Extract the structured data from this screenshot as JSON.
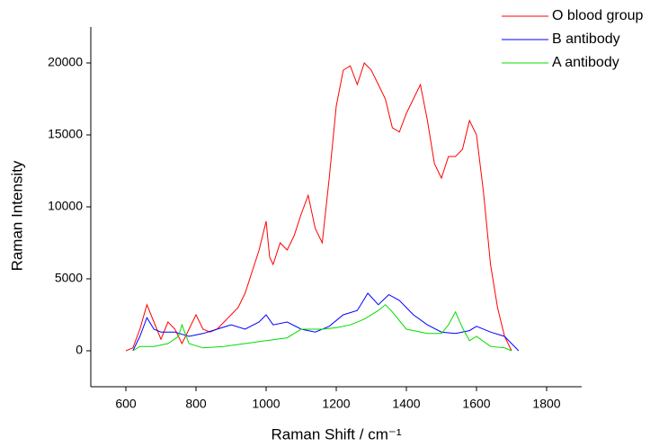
{
  "chart_data": {
    "type": "line",
    "xlabel": "Raman Shift / cm⁻¹",
    "ylabel": "Raman Intensity",
    "xlim": [
      500,
      1900
    ],
    "ylim": [
      -2500,
      22500
    ],
    "xticks": [
      600,
      800,
      1000,
      1200,
      1400,
      1600,
      1800
    ],
    "yticks": [
      0,
      5000,
      10000,
      15000,
      20000
    ],
    "grid": false,
    "legend": "upper right",
    "series": [
      {
        "name": "O blood group",
        "color": "#ff0000",
        "x": [
          600,
          620,
          640,
          660,
          680,
          700,
          720,
          740,
          760,
          780,
          800,
          820,
          840,
          860,
          880,
          900,
          920,
          940,
          960,
          980,
          1000,
          1010,
          1020,
          1040,
          1060,
          1080,
          1100,
          1120,
          1140,
          1160,
          1180,
          1200,
          1220,
          1240,
          1260,
          1280,
          1300,
          1320,
          1340,
          1360,
          1380,
          1400,
          1420,
          1440,
          1460,
          1480,
          1500,
          1520,
          1540,
          1560,
          1580,
          1600,
          1620,
          1640,
          1660,
          1680,
          1700
        ],
        "values": [
          0,
          200,
          1500,
          3200,
          2000,
          800,
          2000,
          1500,
          500,
          1500,
          2500,
          1500,
          1300,
          1500,
          2000,
          2500,
          3000,
          4000,
          5500,
          7000,
          9000,
          6500,
          6000,
          7500,
          7000,
          8000,
          9500,
          10800,
          8500,
          7500,
          12000,
          17000,
          19500,
          19800,
          18500,
          20000,
          19500,
          18500,
          17500,
          15500,
          15200,
          16500,
          17500,
          18500,
          16000,
          13000,
          12000,
          13500,
          13500,
          14000,
          16000,
          15000,
          11000,
          6000,
          3000,
          1000,
          0
        ]
      },
      {
        "name": "B antibody",
        "color": "#0000ff",
        "x": [
          620,
          640,
          660,
          680,
          700,
          740,
          780,
          820,
          860,
          900,
          940,
          980,
          1000,
          1020,
          1060,
          1100,
          1140,
          1180,
          1220,
          1260,
          1290,
          1320,
          1350,
          1380,
          1420,
          1460,
          1500,
          1540,
          1580,
          1600,
          1640,
          1680,
          1720
        ],
        "values": [
          0,
          1000,
          2300,
          1500,
          1300,
          1300,
          1000,
          1200,
          1500,
          1800,
          1500,
          2000,
          2500,
          1800,
          2000,
          1500,
          1300,
          1700,
          2500,
          2800,
          4000,
          3200,
          3900,
          3500,
          2500,
          1800,
          1300,
          1200,
          1400,
          1700,
          1300,
          1000,
          0
        ]
      },
      {
        "name": "A antibody",
        "color": "#00dd00",
        "x": [
          620,
          640,
          680,
          720,
          750,
          760,
          780,
          820,
          880,
          940,
          1000,
          1060,
          1100,
          1160,
          1200,
          1240,
          1280,
          1320,
          1340,
          1360,
          1400,
          1460,
          1500,
          1520,
          1540,
          1560,
          1580,
          1600,
          1640,
          1680,
          1700
        ],
        "values": [
          0,
          300,
          300,
          500,
          1000,
          1800,
          500,
          200,
          300,
          500,
          700,
          900,
          1500,
          1500,
          1600,
          1800,
          2200,
          2800,
          3200,
          2700,
          1500,
          1200,
          1200,
          1800,
          2700,
          1600,
          700,
          1000,
          300,
          200,
          0
        ]
      }
    ]
  }
}
